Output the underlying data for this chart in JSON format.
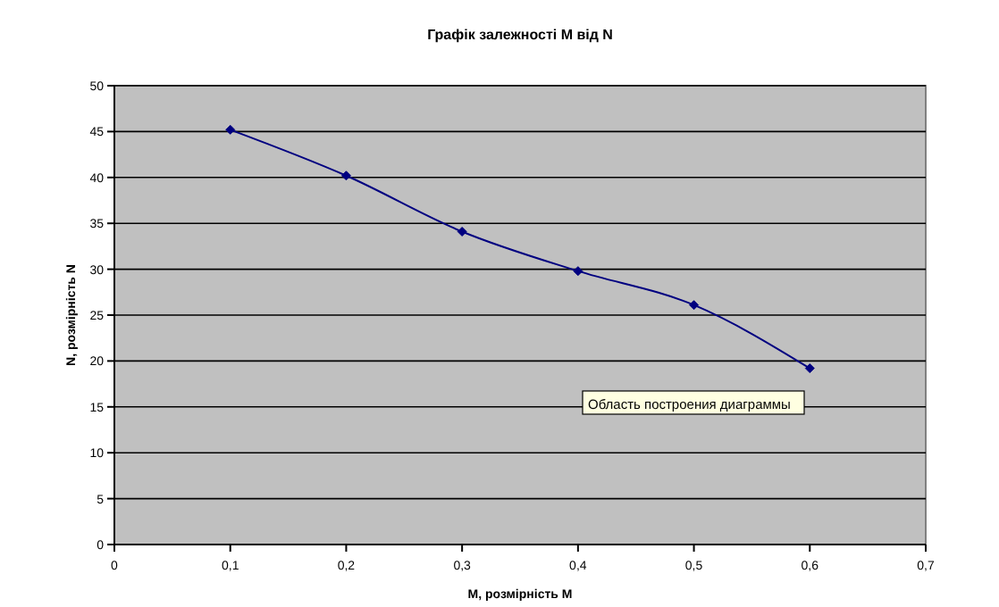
{
  "chart_data": {
    "type": "line",
    "title": "Графік залежності M від N",
    "xlabel": "M, розмірність M",
    "ylabel": "N, розмірність N",
    "x": [
      0.1,
      0.2,
      0.3,
      0.4,
      0.5,
      0.6
    ],
    "series": [
      {
        "color": "#000080",
        "values": [
          45.2,
          40.2,
          34.1,
          29.8,
          26.1,
          19.2
        ]
      }
    ],
    "xlim": [
      0,
      0.7
    ],
    "xticks": [
      0,
      {
        "value": 0.1,
        "label": "0,1"
      },
      {
        "value": 0.2,
        "label": "0,2"
      },
      {
        "value": 0.3,
        "label": "0,3"
      },
      {
        "value": 0.4,
        "label": "0,4"
      },
      {
        "value": 0.5,
        "label": "0,5"
      },
      {
        "value": 0.6,
        "label": "0,6"
      },
      {
        "value": 0.7,
        "label": "0,7"
      }
    ],
    "ylim": [
      0,
      50
    ],
    "yticks": [
      0,
      5,
      10,
      15,
      20,
      25,
      30,
      35,
      40,
      45,
      50
    ],
    "grid": "y",
    "marker": "diamond",
    "line_style": "solid",
    "annotations": [
      "Область построения диаграммы"
    ]
  }
}
